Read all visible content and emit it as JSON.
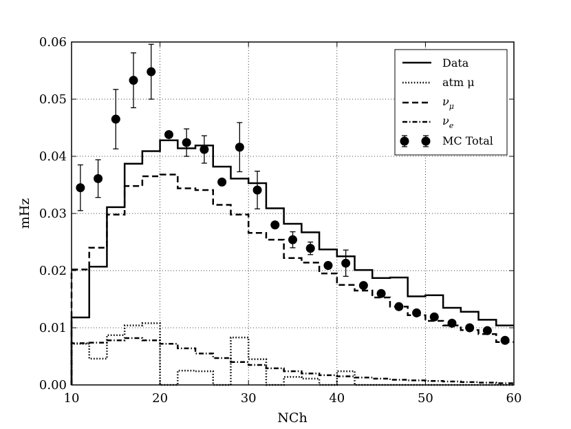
{
  "chart_data": {
    "type": "step",
    "xlabel": "NCh",
    "ylabel": "mHz",
    "xlim": [
      10,
      60
    ],
    "ylim": [
      0.0,
      0.06
    ],
    "x_ticks": [
      "10",
      "20",
      "30",
      "40",
      "50",
      "60"
    ],
    "y_ticks": [
      "0.00",
      "0.01",
      "0.02",
      "0.03",
      "0.04",
      "0.05",
      "0.06"
    ],
    "grid": true,
    "legend_position": "top-right",
    "bin_edges": [
      10,
      12,
      14,
      16,
      18,
      20,
      22,
      24,
      26,
      28,
      30,
      32,
      34,
      36,
      38,
      40,
      42,
      44,
      46,
      48,
      50,
      52,
      54,
      56,
      58,
      60
    ],
    "series": [
      {
        "name": "Data",
        "style": "solid",
        "values": [
          0.0118,
          0.0207,
          0.0311,
          0.0387,
          0.0409,
          0.0428,
          0.0414,
          0.0419,
          0.0382,
          0.0361,
          0.0353,
          0.0309,
          0.0282,
          0.0267,
          0.0237,
          0.0225,
          0.0201,
          0.0187,
          0.0188,
          0.0155,
          0.0157,
          0.0135,
          0.0128,
          0.0114,
          0.0104
        ]
      },
      {
        "name": "atm μ",
        "style": "dotted",
        "values": [
          0.0072,
          0.0046,
          0.0087,
          0.0104,
          0.0108,
          0.0,
          0.0025,
          0.0024,
          0.0,
          0.0083,
          0.0045,
          0.0,
          0.0014,
          0.0011,
          0.0,
          0.0024,
          0.0,
          0.0,
          0.0,
          0.0,
          0.0,
          0.0,
          0.0,
          0.0,
          0.0
        ]
      },
      {
        "name": "ν_μ",
        "style": "dashed",
        "values": [
          0.0202,
          0.024,
          0.0298,
          0.0348,
          0.0365,
          0.0368,
          0.0344,
          0.0341,
          0.0315,
          0.0298,
          0.0266,
          0.0254,
          0.0222,
          0.0214,
          0.0195,
          0.0175,
          0.0165,
          0.0153,
          0.0137,
          0.0122,
          0.0112,
          0.0104,
          0.0096,
          0.0089,
          0.0075
        ]
      },
      {
        "name": "ν_e",
        "style": "dashdot",
        "values": [
          0.0073,
          0.0074,
          0.0078,
          0.0082,
          0.0078,
          0.0072,
          0.0064,
          0.0055,
          0.0047,
          0.004,
          0.0035,
          0.0029,
          0.0024,
          0.002,
          0.0017,
          0.0015,
          0.0013,
          0.0011,
          0.0009,
          0.0008,
          0.0007,
          0.0006,
          0.0005,
          0.0004,
          0.0003
        ]
      }
    ],
    "mc_total": {
      "name": "MC Total",
      "x": [
        11,
        13,
        15,
        17,
        19,
        21,
        23,
        25,
        27,
        29,
        31,
        33,
        35,
        37,
        39,
        41,
        43,
        45,
        47,
        49,
        51,
        53,
        55,
        57,
        59
      ],
      "y": [
        0.0345,
        0.0361,
        0.0465,
        0.0533,
        0.0548,
        0.0438,
        0.0424,
        0.0412,
        0.0355,
        0.0416,
        0.0341,
        0.028,
        0.0254,
        0.0239,
        0.0209,
        0.0213,
        0.0174,
        0.016,
        0.0137,
        0.0126,
        0.0119,
        0.0108,
        0.01,
        0.0095,
        0.0078
      ],
      "yerr": [
        0.004,
        0.0033,
        0.0052,
        0.0048,
        0.0048,
        0.0,
        0.0024,
        0.0024,
        0.0,
        0.0043,
        0.0033,
        0.0,
        0.0014,
        0.0011,
        0.0,
        0.0023,
        0.0,
        0.0,
        0.0,
        0.0,
        0.0,
        0.0,
        0.0,
        0.0,
        0.0
      ]
    },
    "legend": {
      "data": "Data",
      "atm_mu": "atm μ",
      "nu_mu": "ν",
      "nu_mu_sub": "μ",
      "nu_e": "ν",
      "nu_e_sub": "e",
      "mc_total": "MC Total"
    }
  }
}
